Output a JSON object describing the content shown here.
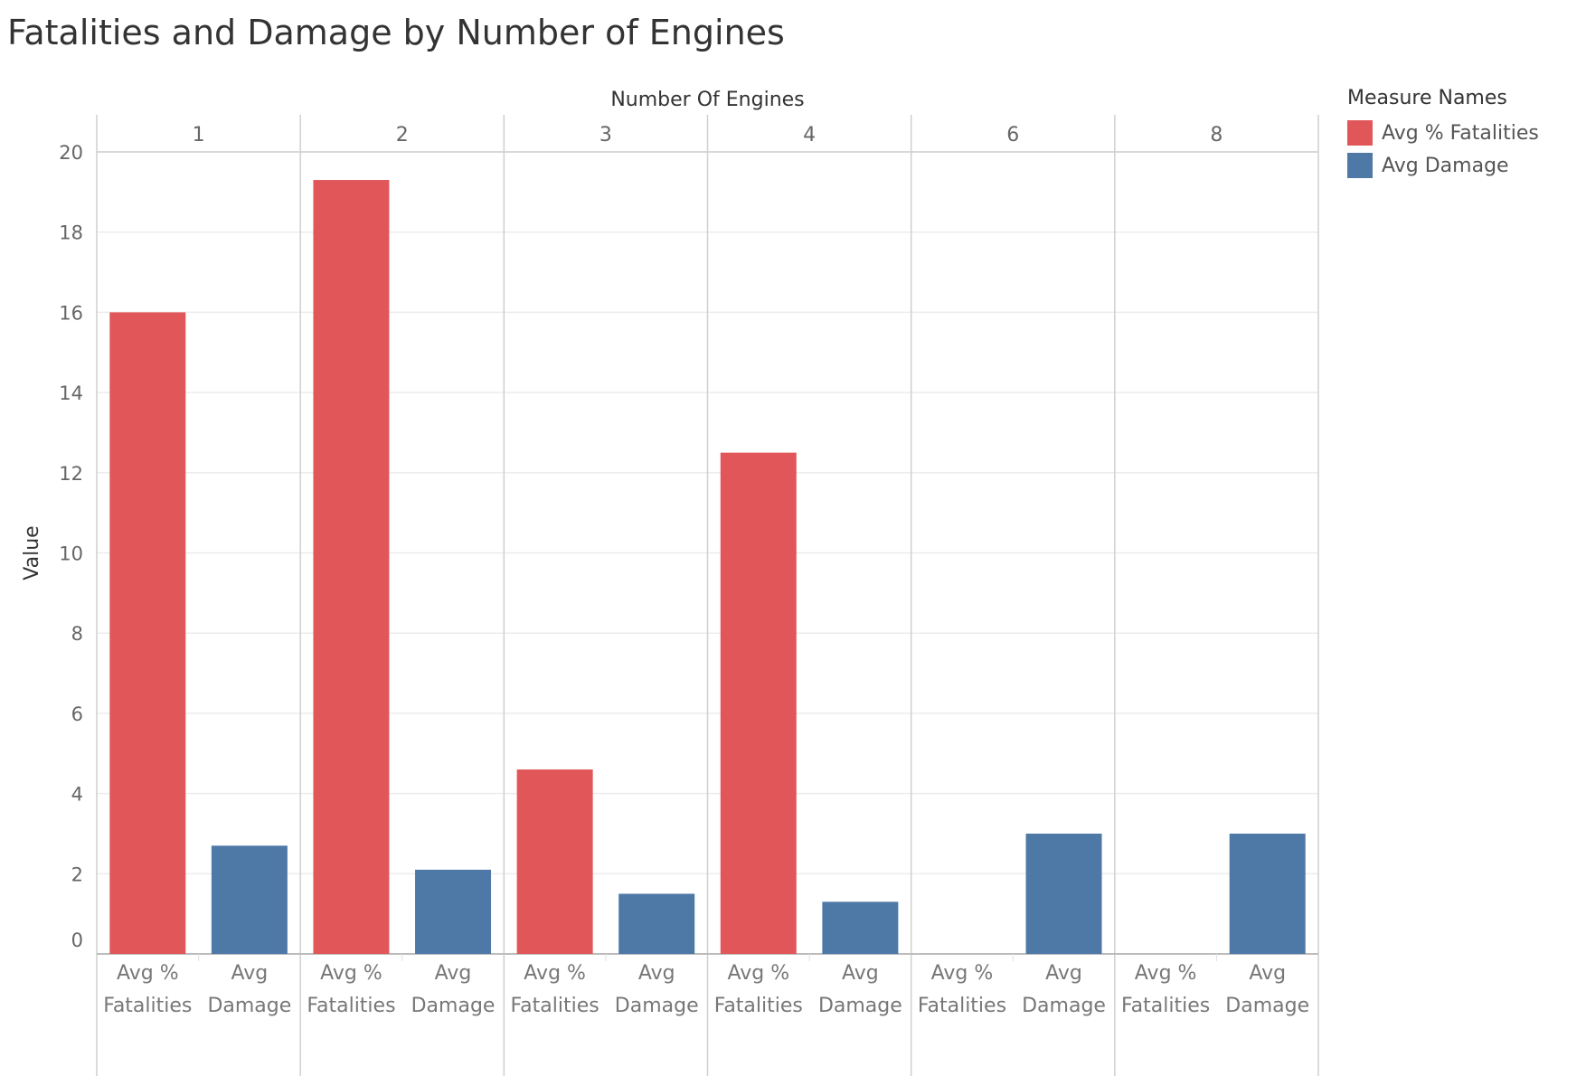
{
  "title": "Fatalities and Damage by Number of Engines",
  "legend": {
    "title": "Measure Names",
    "items": [
      {
        "label": "Avg % Fatalities",
        "color": "#e15759"
      },
      {
        "label": "Avg Damage",
        "color": "#4e79a7"
      }
    ]
  },
  "chart_data": {
    "type": "bar",
    "title": "Fatalities and Damage by Number of Engines",
    "column_header": "Number Of Engines",
    "ylabel": "Value",
    "ylim": [
      0,
      20
    ],
    "yticks": [
      0,
      2,
      4,
      6,
      8,
      10,
      12,
      14,
      16,
      18,
      20
    ],
    "groups": [
      "1",
      "2",
      "3",
      "4",
      "6",
      "8"
    ],
    "measures": [
      {
        "label_line1": "Avg %",
        "label_line2": "Fatalities"
      },
      {
        "label_line1": "Avg",
        "label_line2": "Damage"
      }
    ],
    "series": [
      {
        "name": "Avg % Fatalities",
        "color": "#e15759",
        "values": [
          16.0,
          19.3,
          4.6,
          12.5,
          0,
          0
        ]
      },
      {
        "name": "Avg Damage",
        "color": "#4e79a7",
        "values": [
          2.7,
          2.1,
          1.5,
          1.3,
          3.0,
          3.0
        ]
      }
    ],
    "grid": true,
    "legend_position": "right"
  }
}
